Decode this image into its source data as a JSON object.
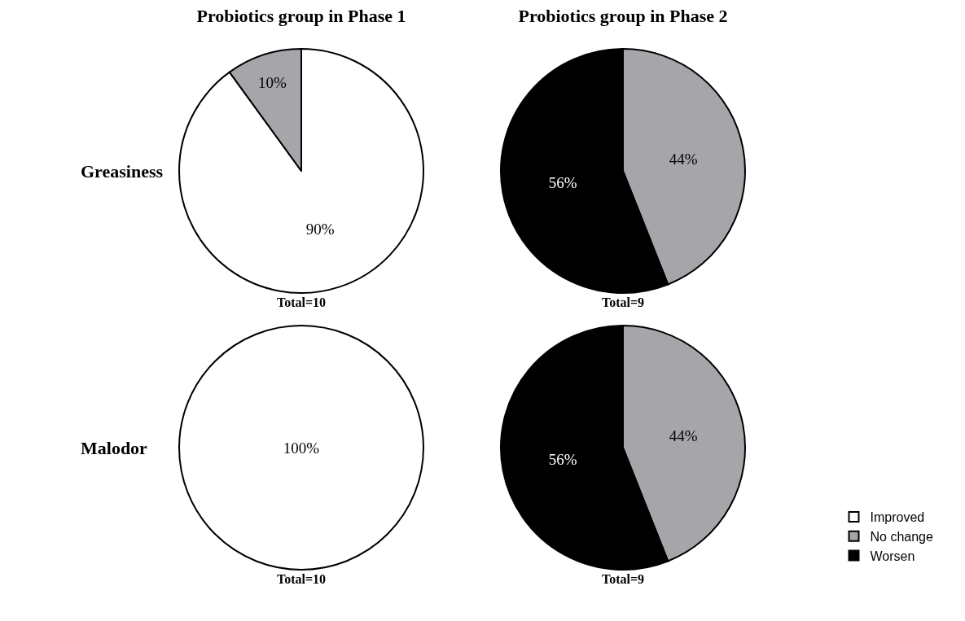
{
  "chart_data": [
    {
      "type": "pie",
      "title": "Probiotics group in Phase 1",
      "ylabel": "Greasiness",
      "categories": [
        null,
        null,
        null
      ],
      "values": [
        90,
        10,
        0
      ],
      "colors": [
        "#ffffff",
        "#a6a6aa",
        "#000000"
      ],
      "value_labels": [
        "90%",
        "10%",
        null
      ],
      "annotations": [
        "Total=10"
      ],
      "legend": false
    },
    {
      "type": "pie",
      "title": "Probiotics group in Phase 2",
      "categories": [
        null,
        null,
        null
      ],
      "values": [
        0,
        44,
        56
      ],
      "colors": [
        "#ffffff",
        "#a6a6aa",
        "#000000"
      ],
      "value_labels": [
        null,
        "44%",
        "56%"
      ],
      "annotations": [
        "Total=9"
      ],
      "legend": false
    },
    {
      "type": "pie",
      "ylabel": "Malodor",
      "categories": [
        null,
        null,
        null
      ],
      "values": [
        100,
        0,
        0
      ],
      "colors": [
        "#ffffff",
        "#a6a6aa",
        "#000000"
      ],
      "value_labels": [
        "100%",
        null,
        null
      ],
      "annotations": [
        "Total=10"
      ],
      "legend": false
    },
    {
      "type": "pie",
      "categories": [
        "Improved",
        "No change",
        "Worsen"
      ],
      "values": [
        0,
        44,
        56
      ],
      "colors": [
        "#ffffff",
        "#a6a6aa",
        "#000000"
      ],
      "value_labels": [
        null,
        "44%",
        "56%"
      ],
      "annotations": [
        "Total=9"
      ],
      "legend": "bottom right"
    }
  ]
}
